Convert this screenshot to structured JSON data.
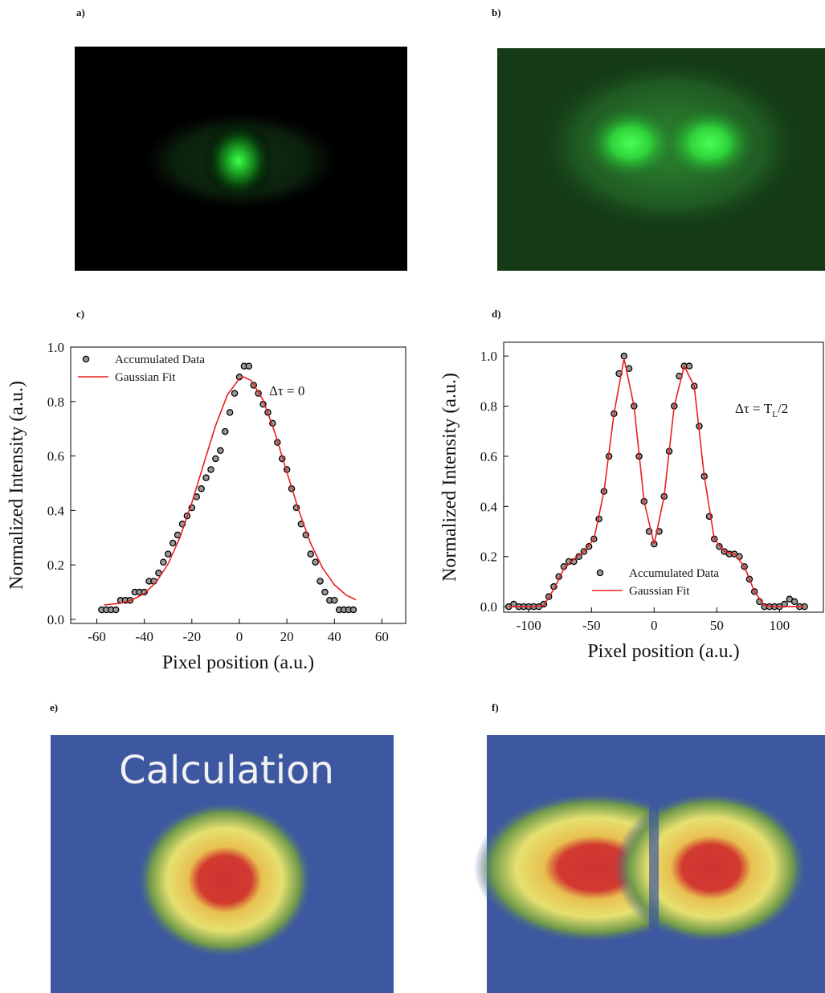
{
  "panel_labels": [
    "a)",
    "b)",
    "c)",
    "d)",
    "e)",
    "f)"
  ],
  "calculation_label": "Calculation",
  "chart_data": [
    {
      "type": "scatter",
      "xlabel": "Pixel position (a.u.)",
      "ylabel": "Normalized Intensity (a.u.)",
      "annotation": [
        "Δτ = 0"
      ],
      "legend": "upper left",
      "xlim": [
        -71,
        70
      ],
      "ylim": [
        -0.015,
        1.0
      ],
      "xticks": [
        -60,
        -40,
        -20,
        0,
        20,
        40,
        60
      ],
      "yticks": [
        {
          "value": 0,
          "label": "0.0"
        },
        0.2,
        0.4,
        0.6,
        0.8,
        {
          "value": 1,
          "label": "1.0"
        }
      ],
      "series": [
        {
          "name": "Accumulated Data",
          "kind": "points",
          "color": "#000000",
          "x": [
            -58,
            -56,
            -54,
            -52,
            -50,
            -48,
            -46,
            -44,
            -42,
            -40,
            -38,
            -36,
            -34,
            -32,
            -30,
            -28,
            -26,
            -24,
            -22,
            -20,
            -18,
            -16,
            -14,
            -12,
            -10,
            -8,
            -6,
            -4,
            -2,
            0,
            2,
            4,
            6,
            8,
            10,
            12,
            14,
            16,
            18,
            20,
            22,
            24,
            26,
            28,
            30,
            32,
            34,
            36,
            38,
            40,
            42,
            44,
            46,
            48
          ],
          "values": [
            0.035,
            0.035,
            0.035,
            0.035,
            0.07,
            0.07,
            0.07,
            0.1,
            0.1,
            0.1,
            0.14,
            0.14,
            0.17,
            0.21,
            0.24,
            0.28,
            0.31,
            0.35,
            0.38,
            0.41,
            0.45,
            0.48,
            0.52,
            0.55,
            0.59,
            0.62,
            0.69,
            0.76,
            0.83,
            0.89,
            0.93,
            0.93,
            0.86,
            0.83,
            0.79,
            0.76,
            0.72,
            0.65,
            0.59,
            0.55,
            0.48,
            0.41,
            0.35,
            0.31,
            0.24,
            0.21,
            0.14,
            0.1,
            0.07,
            0.07,
            0.035,
            0.035,
            0.035,
            0.035
          ]
        },
        {
          "name": "Gaussian Fit",
          "kind": "line",
          "color": "#e8201c",
          "x": [
            -57,
            -50,
            -45,
            -40,
            -35,
            -30,
            -25,
            -20,
            -15,
            -10,
            -5,
            0,
            2,
            5,
            10,
            15,
            20,
            25,
            30,
            35,
            40,
            45,
            49
          ],
          "values": [
            0.053,
            0.059,
            0.072,
            0.095,
            0.137,
            0.204,
            0.301,
            0.428,
            0.571,
            0.712,
            0.825,
            0.884,
            0.89,
            0.877,
            0.805,
            0.685,
            0.541,
            0.4,
            0.279,
            0.189,
            0.127,
            0.089,
            0.072
          ]
        }
      ]
    },
    {
      "type": "scatter",
      "xlabel": "Pixel position (a.u.)",
      "ylabel": "Normalized Intensity (a.u.)",
      "annotation": [
        "Δτ = T",
        "L",
        "/2"
      ],
      "legend": "lower center",
      "xlim": [
        -120,
        135
      ],
      "ylim": [
        -0.022,
        1.055
      ],
      "xticks": [
        -100,
        -50,
        0,
        50,
        100
      ],
      "yticks": [
        {
          "value": 0,
          "label": "0.0"
        },
        0.2,
        0.4,
        0.6,
        0.8,
        {
          "value": 1,
          "label": "1.0"
        }
      ],
      "series": [
        {
          "name": "Accumulated Data",
          "kind": "points",
          "color": "#000000",
          "x": [
            -116,
            -112,
            -108,
            -104,
            -100,
            -96,
            -92,
            -88,
            -84,
            -80,
            -76,
            -72,
            -68,
            -64,
            -60,
            -56,
            -52,
            -48,
            -44,
            -40,
            -36,
            -32,
            -28,
            -24,
            -20,
            -16,
            -12,
            -8,
            -4,
            0,
            4,
            8,
            12,
            16,
            20,
            24,
            28,
            32,
            36,
            40,
            44,
            48,
            52,
            56,
            60,
            64,
            68,
            72,
            76,
            80,
            84,
            88,
            92,
            96,
            100,
            104,
            108,
            112,
            116,
            120
          ],
          "values": [
            0,
            0.01,
            0,
            0,
            0,
            0,
            0,
            0.01,
            0.04,
            0.08,
            0.12,
            0.16,
            0.18,
            0.18,
            0.2,
            0.22,
            0.24,
            0.27,
            0.35,
            0.46,
            0.6,
            0.77,
            0.93,
            1.0,
            0.95,
            0.8,
            0.6,
            0.42,
            0.3,
            0.25,
            0.3,
            0.44,
            0.62,
            0.8,
            0.92,
            0.96,
            0.96,
            0.88,
            0.72,
            0.52,
            0.36,
            0.27,
            0.24,
            0.22,
            0.21,
            0.21,
            0.2,
            0.16,
            0.11,
            0.06,
            0.02,
            0,
            0,
            0,
            0,
            0.01,
            0.03,
            0.02,
            0,
            0
          ]
        },
        {
          "name": "Gaussian Fit",
          "kind": "line",
          "color": "#e8201c",
          "x": [
            -116,
            -112,
            -104,
            -96,
            -88,
            -80,
            -72,
            -64,
            -56,
            -48,
            -40,
            -32,
            -24,
            -16,
            -8,
            0,
            8,
            16,
            24,
            32,
            40,
            48,
            56,
            64,
            72,
            80,
            88,
            96,
            104,
            112,
            120
          ],
          "values": [
            0,
            0,
            0,
            0,
            0.005,
            0.07,
            0.15,
            0.19,
            0.22,
            0.27,
            0.46,
            0.77,
            0.99,
            0.8,
            0.42,
            0.25,
            0.44,
            0.8,
            0.96,
            0.88,
            0.52,
            0.27,
            0.22,
            0.21,
            0.16,
            0.06,
            0.005,
            0,
            0,
            0,
            0
          ]
        }
      ]
    }
  ]
}
